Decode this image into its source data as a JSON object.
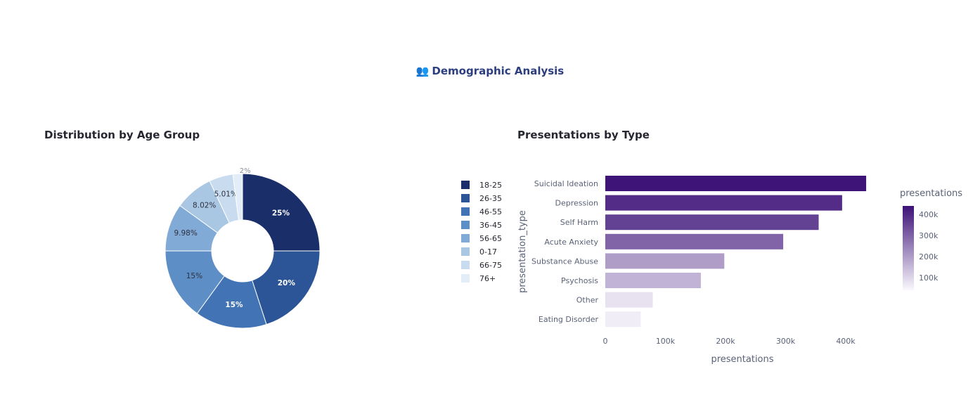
{
  "section": {
    "icon": "👥",
    "title": "Demographic Analysis"
  },
  "chart_data": [
    {
      "type": "pie",
      "title": "Distribution by Age Group",
      "hole": true,
      "categories": [
        "18-25",
        "26-35",
        "46-55",
        "36-45",
        "56-65",
        "0-17",
        "66-75",
        "76+"
      ],
      "values": [
        25,
        20,
        15,
        15,
        9.98,
        8.02,
        5.01,
        2
      ],
      "labels": [
        "25%",
        "20%",
        "15%",
        "15%",
        "9.98%",
        "8.02%",
        "5.01%",
        "2%"
      ],
      "colors": [
        "#1a2f6a",
        "#2c5597",
        "#4273b5",
        "#5d8fc6",
        "#81aad6",
        "#a9c7e3",
        "#c9dbef",
        "#e3edf8"
      ],
      "legend": "right"
    },
    {
      "type": "bar",
      "orientation": "horizontal",
      "title": "Presentations by Type",
      "categories": [
        "Suicidal Ideation",
        "Depression",
        "Self Harm",
        "Acute Anxiety",
        "Substance Abuse",
        "Psychosis",
        "Other",
        "Eating Disorder"
      ],
      "values": [
        434000,
        394000,
        355000,
        296000,
        198000,
        159000,
        79000,
        59000
      ],
      "xlabel": "presentations",
      "ylabel": "presentation_type",
      "xlim": [
        0,
        440000
      ],
      "xticks": [
        "0",
        "100k",
        "200k",
        "300k",
        "400k"
      ],
      "colorbar": {
        "title": "presentations",
        "ticks": [
          "400k",
          "300k",
          "200k",
          "100k"
        ]
      }
    }
  ]
}
